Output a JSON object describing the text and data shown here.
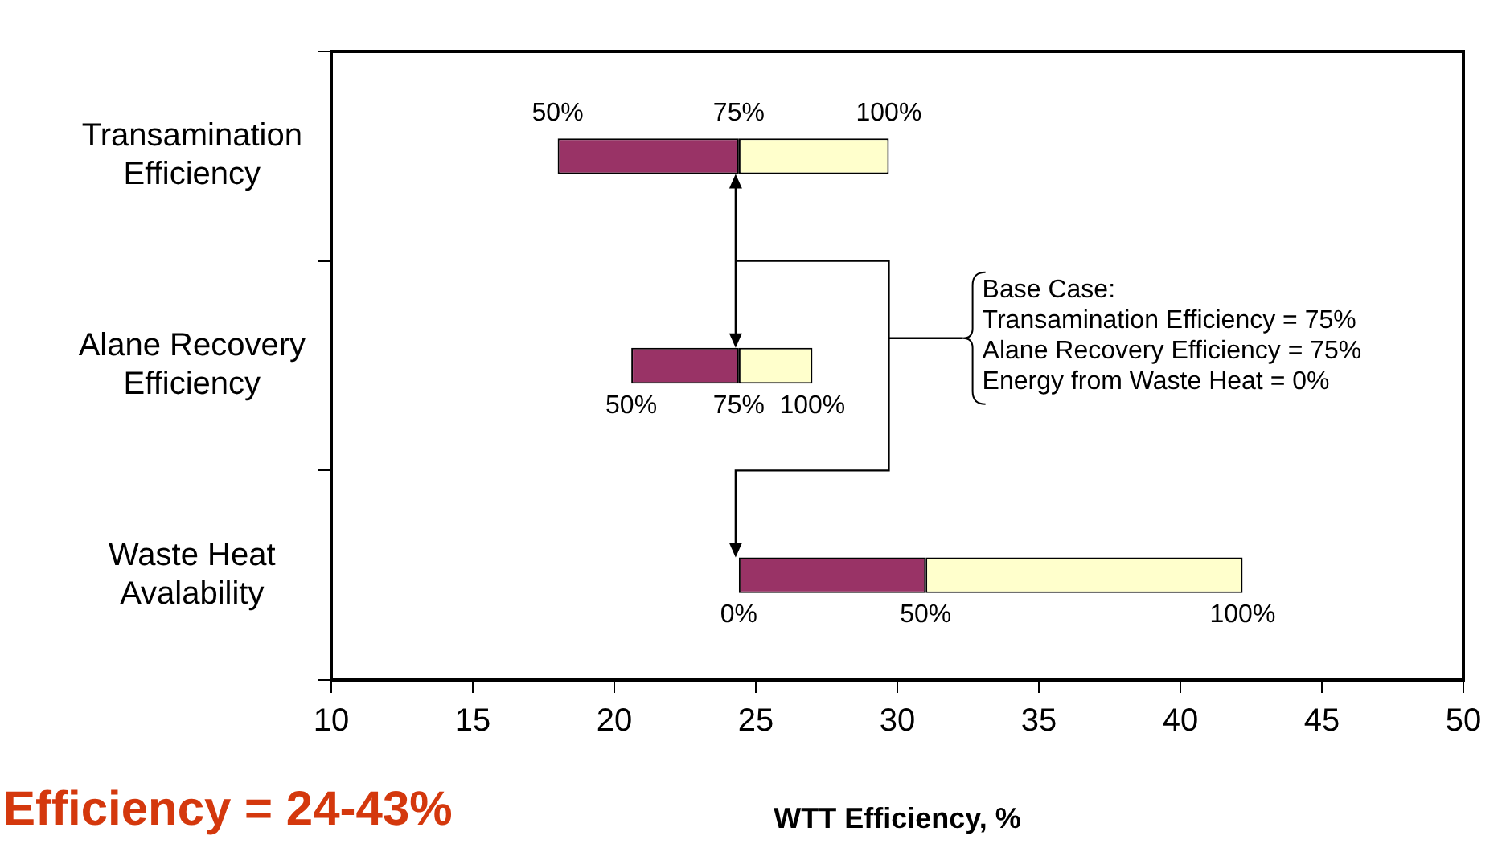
{
  "chart_data": {
    "type": "bar",
    "orientation": "horizontal",
    "title": "Efficiency = 24-43%",
    "xlabel": "WTT Efficiency, %",
    "categories": [
      "Transamination\nEfficiency",
      "Alane Recovery\nEfficiency",
      "Waste Heat\nAvalability"
    ],
    "series": [
      {
        "color": "#993366",
        "base": [
          18.0,
          20.6,
          24.4
        ],
        "values": [
          6.4,
          3.8,
          6.6
        ]
      },
      {
        "color": "#ffffcc",
        "base": [
          24.4,
          24.4,
          31.0
        ],
        "values": [
          5.3,
          2.6,
          11.2
        ]
      }
    ],
    "xlim": [
      10,
      50
    ],
    "xticks": [
      10,
      15,
      20,
      25,
      30,
      35,
      40,
      45,
      50
    ],
    "grid": false,
    "legend": false,
    "annotations": [
      "Base Case:\nTransamination Efficiency = 75%\nAlane Recovery Efficiency = 75%\nEnergy from Waste Heat = 0%",
      {
        "text": "50%",
        "x": 18.0,
        "y": "Transamination\nEfficiency"
      },
      {
        "text": "75%",
        "x": 24.4,
        "y": "Transamination\nEfficiency"
      },
      {
        "text": "100%",
        "x": 29.7,
        "y": "Transamination\nEfficiency"
      },
      {
        "text": "50%",
        "x": 20.6,
        "y": "Alane Recovery\nEfficiency"
      },
      {
        "text": "75%",
        "x": 24.4,
        "y": "Alane Recovery\nEfficiency"
      },
      {
        "text": "100%",
        "x": 27.0,
        "y": "Alane Recovery\nEfficiency"
      },
      {
        "text": "0%",
        "x": 24.4,
        "y": "Waste Heat\nAvalability"
      },
      {
        "text": "50%",
        "x": 31.0,
        "y": "Waste Heat\nAvalability"
      },
      {
        "text": "100%",
        "x": 42.2,
        "y": "Waste Heat\nAvalability"
      }
    ]
  }
}
